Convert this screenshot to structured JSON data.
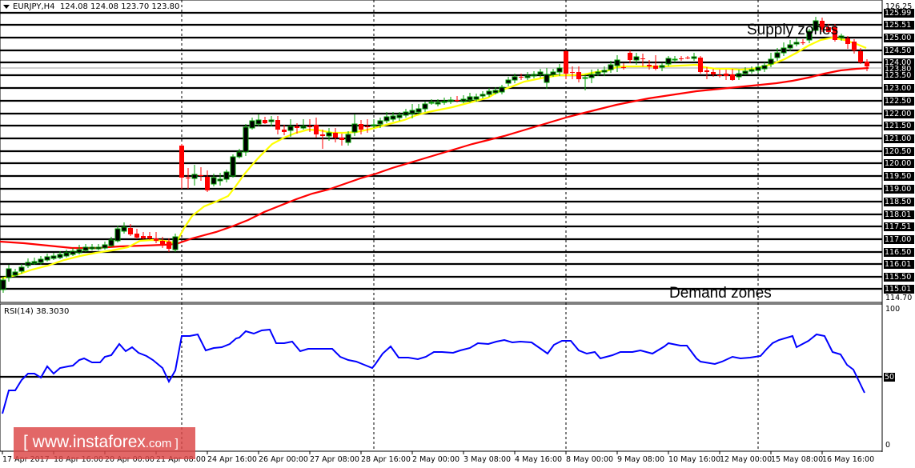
{
  "header": {
    "symbol": "EURJPY,H4",
    "ohlc": "124.08 124.08 123.70 123.80"
  },
  "rsi_panel": {
    "label": "RSI(14) 38.3030",
    "levels": [
      "100",
      "50",
      "0"
    ]
  },
  "annotations": {
    "supply": "Supply zones",
    "demand": "Demand zones"
  },
  "watermark": {
    "prefix": "[ www.instaforex",
    "suffix": ".com ]"
  },
  "price_axis": {
    "boxed": [
      "125.99",
      "125.51",
      "125.00",
      "124.50",
      "124.00",
      "123.50",
      "123.00",
      "122.50",
      "122.00",
      "121.50",
      "121.00",
      "120.50",
      "120.00",
      "119.50",
      "119.00",
      "118.50",
      "118.01",
      "117.51",
      "117.00",
      "116.50",
      "116.01",
      "115.50",
      "115.01"
    ],
    "plain": [
      "126.25",
      "114.70"
    ],
    "current_price": "123.80"
  },
  "time_axis": [
    "17 Apr 2017",
    "18 Apr 16:00",
    "20 Apr 00:00",
    "21 Apr 08:00",
    "24 Apr 16:00",
    "26 Apr 00:00",
    "27 Apr 08:00",
    "28 Apr 16:00",
    "2 May 00:00",
    "3 May 08:00",
    "4 May 16:00",
    "8 May 00:00",
    "9 May 08:00",
    "10 May 16:00",
    "12 May 00:00",
    "15 May 08:00",
    "16 May 16:00"
  ],
  "colors": {
    "bull_outline": "#00a000",
    "bull_fill": "#000000",
    "bear": "#ff0000",
    "ma_fast": "#ffff00",
    "ma_slow": "#ff0000",
    "rsi": "#0000ff",
    "grid": "#000000"
  },
  "chart_data": [
    {
      "type": "candlestick",
      "title": "EURJPY,H4",
      "subtitle": "124.08 124.08 123.70 123.80",
      "xlabel": "",
      "ylabel": "",
      "ylim": [
        114.7,
        126.25
      ],
      "categories": [
        "17 Apr 2017",
        "18 Apr 16:00",
        "20 Apr 00:00",
        "21 Apr 08:00",
        "24 Apr 16:00",
        "26 Apr 00:00",
        "27 Apr 08:00",
        "28 Apr 16:00",
        "2 May 00:00",
        "3 May 08:00",
        "4 May 16:00",
        "8 May 00:00",
        "9 May 08:00",
        "10 May 16:00",
        "12 May 00:00",
        "15 May 08:00",
        "16 May 16:00"
      ],
      "series": [
        {
          "name": "EURJPY close (approx, per time label)",
          "values": [
            115.3,
            116.3,
            117.2,
            116.8,
            119.4,
            121.7,
            121.0,
            121.5,
            122.6,
            123.0,
            123.9,
            123.9,
            124.3,
            124.0,
            123.6,
            124.2,
            124.9
          ]
        },
        {
          "name": "Fast MA (yellow)",
          "values": [
            115.1,
            115.9,
            116.6,
            116.8,
            119.0,
            120.7,
            121.0,
            121.1,
            122.2,
            122.8,
            123.5,
            123.9,
            124.0,
            124.0,
            123.9,
            124.1,
            124.6
          ]
        },
        {
          "name": "Slow MA (red)",
          "values": [
            116.9,
            116.7,
            116.7,
            116.8,
            117.6,
            118.4,
            119.0,
            119.6,
            120.2,
            120.8,
            121.5,
            122.0,
            122.5,
            122.9,
            123.2,
            123.5,
            123.8
          ]
        }
      ],
      "horizontal_levels": [
        125.99,
        125.51,
        125.0,
        124.5,
        124.0,
        123.5,
        123.0,
        122.5,
        122.0,
        121.5,
        121.0,
        120.5,
        120.0,
        119.5,
        119.0,
        118.5,
        118.01,
        117.51,
        117.0,
        116.5,
        116.01,
        115.5,
        115.01
      ],
      "annotations": [
        "Supply zones",
        "Demand zones"
      ],
      "last": {
        "open": 124.08,
        "high": 124.08,
        "low": 123.7,
        "close": 123.8
      }
    },
    {
      "type": "line",
      "title": "RSI(14) 38.3030",
      "ylim": [
        0,
        100
      ],
      "reference_line": 50,
      "categories": [
        "17 Apr 2017",
        "18 Apr 16:00",
        "20 Apr 00:00",
        "21 Apr 08:00",
        "24 Apr 16:00",
        "26 Apr 00:00",
        "27 Apr 08:00",
        "28 Apr 16:00",
        "2 May 00:00",
        "3 May 08:00",
        "4 May 16:00",
        "8 May 00:00",
        "9 May 08:00",
        "10 May 16:00",
        "12 May 00:00",
        "15 May 08:00",
        "16 May 16:00"
      ],
      "series": [
        {
          "name": "RSI(14)",
          "values": [
            30,
            55,
            65,
            48,
            82,
            85,
            68,
            61,
            68,
            70,
            84,
            72,
            70,
            50,
            54,
            75,
            42
          ]
        }
      ],
      "last_value": 38.303
    }
  ]
}
